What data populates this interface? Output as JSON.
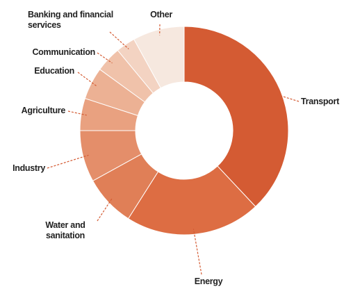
{
  "chart_data": {
    "type": "donut",
    "categories": [
      "Transport",
      "Energy",
      "Water and sanitation",
      "Industry",
      "Agriculture",
      "Education",
      "Communication",
      "Banking and financial services",
      "Other"
    ],
    "values": [
      38,
      21,
      8,
      8,
      5,
      5,
      4,
      3,
      8
    ],
    "colors": [
      "#d45b33",
      "#dd6d43",
      "#e07f57",
      "#e48e6a",
      "#e9a180",
      "#ecb194",
      "#f0c2aa",
      "#f3d3c2",
      "#f6e8df"
    ]
  }
}
